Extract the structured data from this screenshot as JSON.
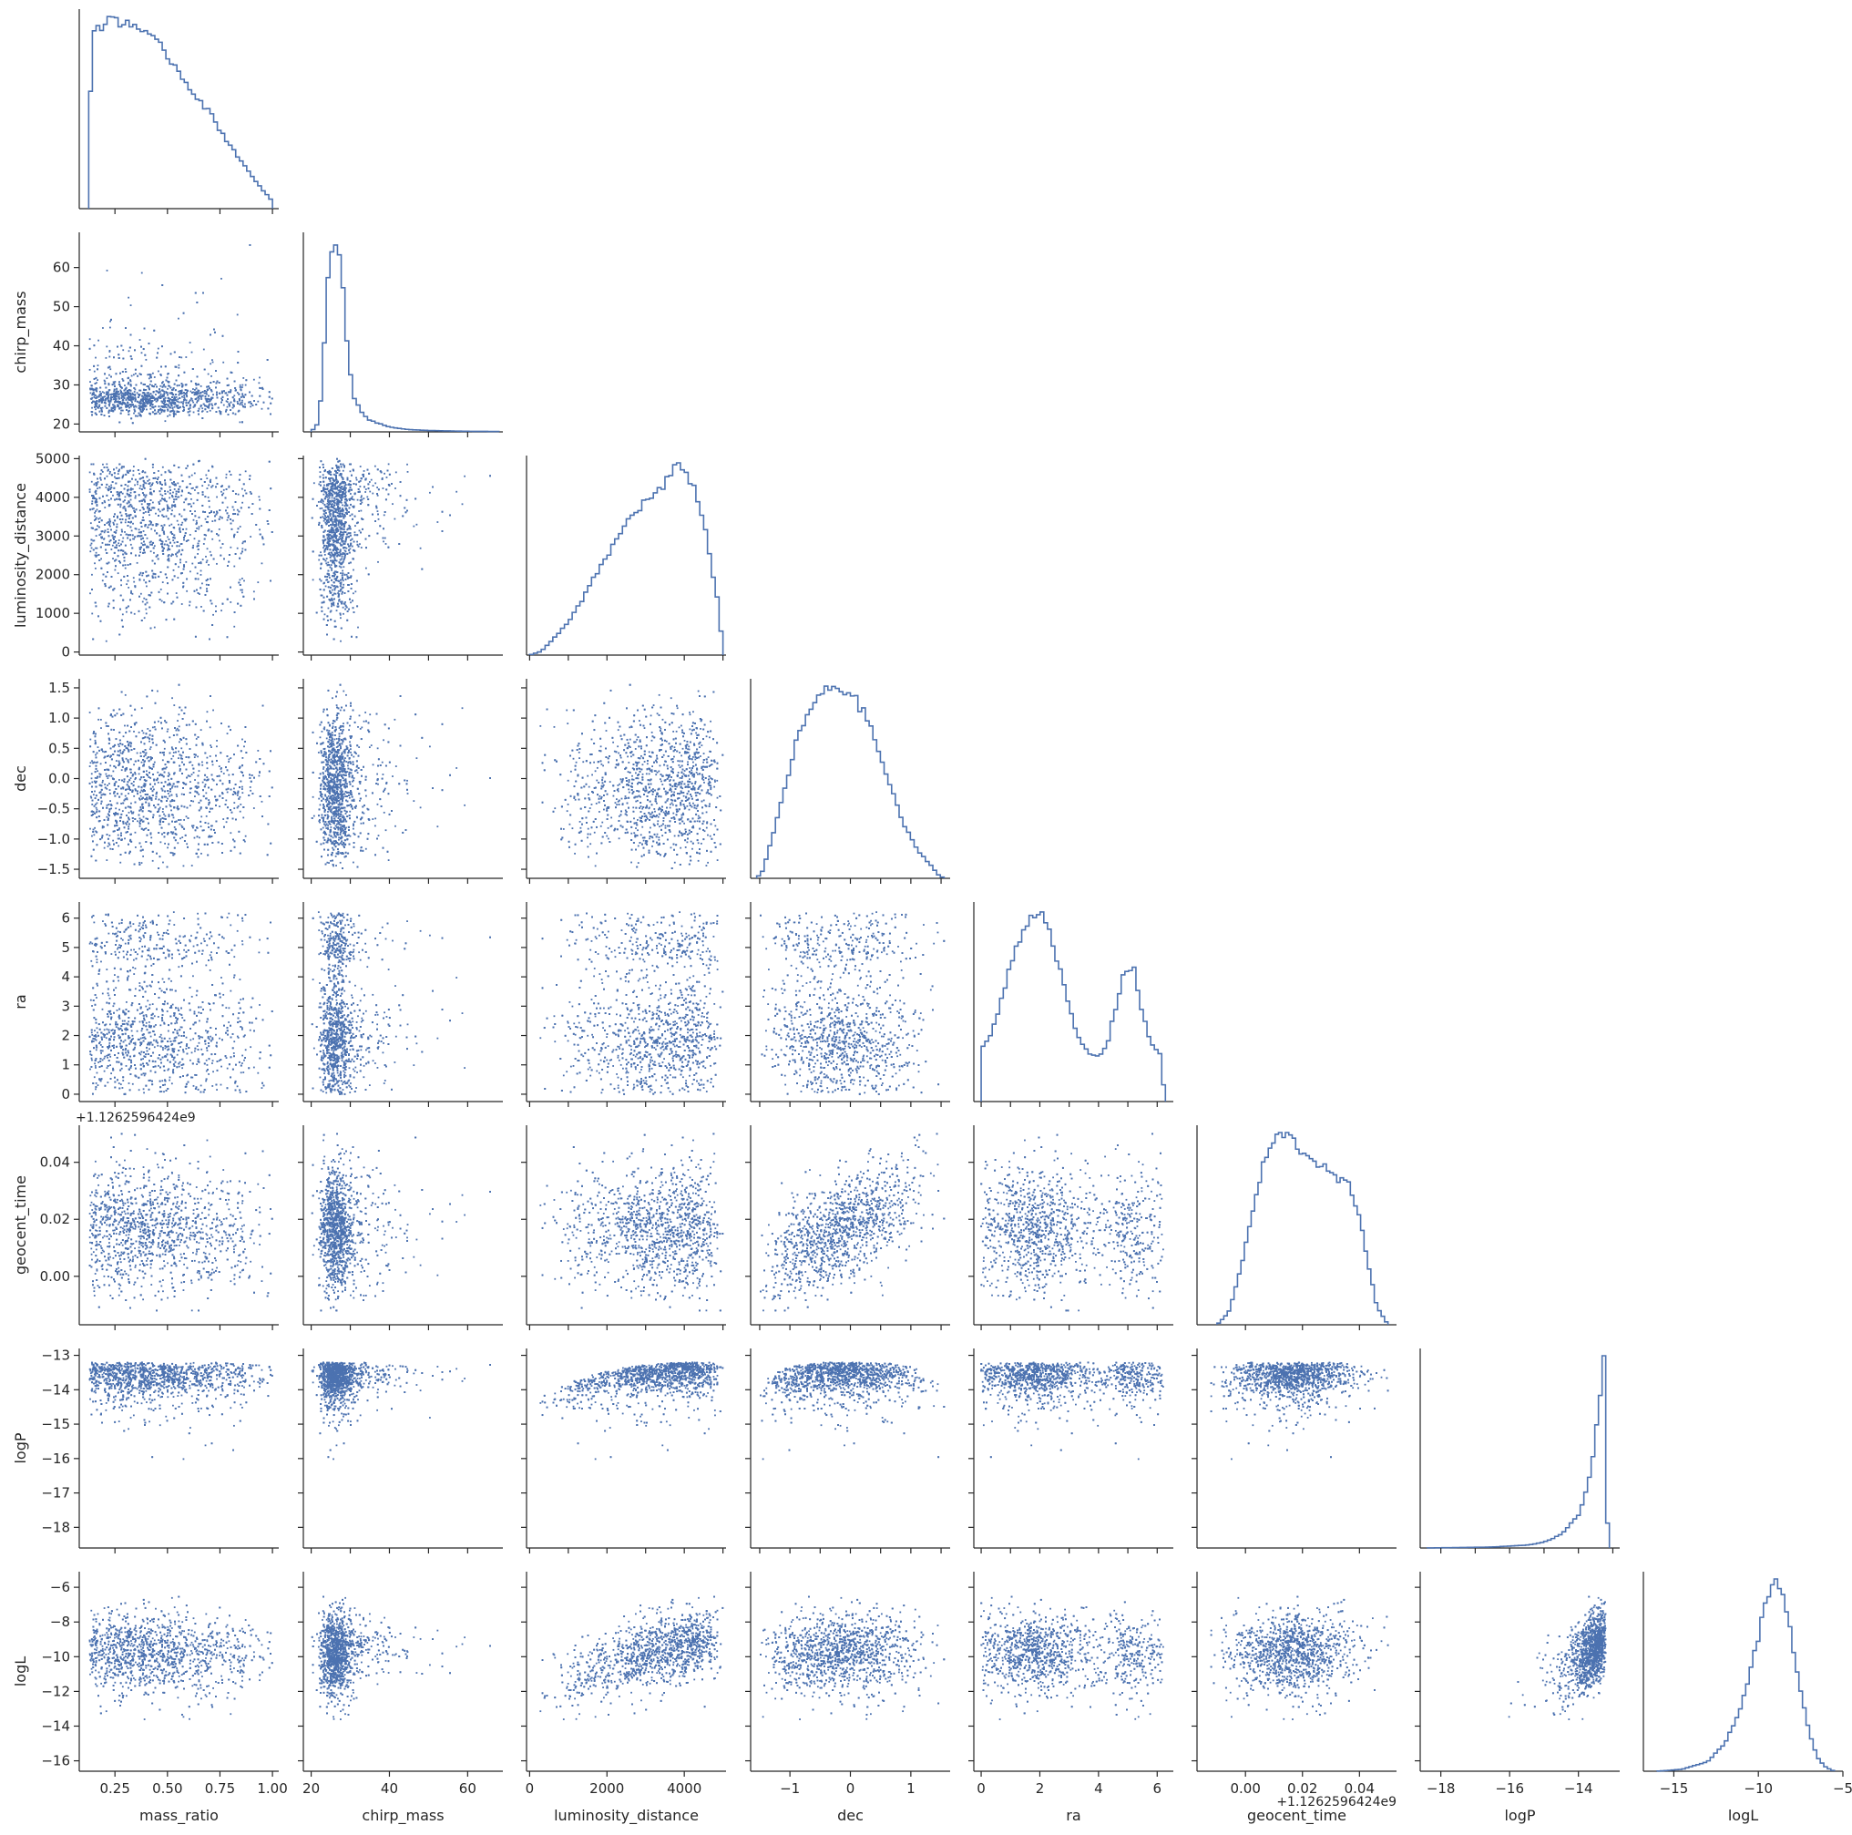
{
  "chart_data": {
    "type": "scatter",
    "title": "",
    "description_kind": "corner plot (pair plot, lower triangle) of 8 parameters with 1D histograms on the diagonal",
    "params": [
      "mass_ratio",
      "chirp_mass",
      "luminosity_distance",
      "dec",
      "ra",
      "geocent_time",
      "logP",
      "logL"
    ],
    "axes": [
      {
        "name": "mass_ratio",
        "range": [
          0.08,
          1.03
        ],
        "ticks": [
          0.25,
          0.5,
          0.75,
          1.0
        ],
        "tick_labels": [
          "0.25",
          "0.50",
          "0.75",
          "1.00"
        ]
      },
      {
        "name": "chirp_mass",
        "range": [
          18,
          69
        ],
        "ticks": [
          20,
          30,
          40,
          50,
          60
        ],
        "tick_labels": [
          "20",
          "30",
          "40",
          "50",
          "60"
        ]
      },
      {
        "name": "luminosity_distance",
        "range": [
          -80,
          5080
        ],
        "ticks": [
          0,
          1000,
          2000,
          3000,
          4000,
          5000
        ],
        "tick_labels": [
          "0",
          "1000",
          "2000",
          "3000",
          "4000",
          "5000"
        ]
      },
      {
        "name": "dec",
        "range": [
          -1.65,
          1.65
        ],
        "ticks": [
          -1.5,
          -1.0,
          -0.5,
          0.0,
          0.5,
          1.0,
          1.5
        ],
        "tick_labels": [
          "−1.5",
          "−1.0",
          "−0.5",
          "0.0",
          "0.5",
          "1.0",
          "1.5"
        ]
      },
      {
        "name": "ra",
        "range": [
          -0.25,
          6.55
        ],
        "ticks": [
          0,
          1,
          2,
          3,
          4,
          5,
          6
        ],
        "tick_labels": [
          "0",
          "1",
          "2",
          "3",
          "4",
          "5",
          "6"
        ]
      },
      {
        "name": "geocent_time",
        "range": [
          -0.017,
          0.053
        ],
        "ticks": [
          0.0,
          0.02,
          0.04
        ],
        "tick_labels": [
          "0.00",
          "0.02",
          "0.04"
        ],
        "offset_text": "+1.1262596424e9"
      },
      {
        "name": "logP",
        "range": [
          -18.6,
          -12.8
        ],
        "ticks": [
          -18,
          -17,
          -16,
          -15,
          -14,
          -13
        ],
        "tick_labels": [
          "−18",
          "−17",
          "−16",
          "−15",
          "−14",
          "−13"
        ]
      },
      {
        "name": "logL",
        "range": [
          -16.6,
          -5.1
        ],
        "ticks": [
          -16,
          -14,
          -12,
          -10,
          -8,
          -6
        ],
        "tick_labels": [
          "−16",
          "−14",
          "−12",
          "−10",
          "−8",
          "−6"
        ]
      }
    ],
    "x_tick_labels_bottom": [
      [
        "0.25",
        "0.50",
        "0.75",
        "1.00"
      ],
      [
        "20",
        "40",
        "60"
      ],
      [
        "0",
        "2000",
        "4000"
      ],
      [
        "−1",
        "0",
        "1"
      ],
      [
        "0",
        "2",
        "4",
        "6"
      ],
      [
        "0.00",
        "0.02",
        "0.04"
      ],
      [
        "−18",
        "−16",
        "−14"
      ],
      [
        "−15",
        "−10",
        "−5"
      ]
    ],
    "x_ticks_bottom": [
      [
        0.25,
        0.5,
        0.75,
        1.0
      ],
      [
        20,
        40,
        60
      ],
      [
        0,
        2000,
        4000
      ],
      [
        -1,
        0,
        1
      ],
      [
        0,
        2,
        4,
        6
      ],
      [
        0.0,
        0.02,
        0.04
      ],
      [
        -18,
        -16,
        -14
      ],
      [
        -15,
        -10,
        -5
      ]
    ],
    "x_range_bottom_last": [
      -16.8,
      -5.0
    ],
    "histograms": [
      {
        "param": "mass_ratio",
        "shape": "right-skewed, peak near 0.22, falling to zero at 1.0",
        "points": [
          [
            0.125,
            0.0
          ],
          [
            0.13,
            0.56
          ],
          [
            0.15,
            0.9
          ],
          [
            0.2,
            0.97
          ],
          [
            0.25,
            1.0
          ],
          [
            0.28,
            0.95
          ],
          [
            0.32,
            0.98
          ],
          [
            0.4,
            0.9
          ],
          [
            0.45,
            0.86
          ],
          [
            0.5,
            0.8
          ],
          [
            0.55,
            0.72
          ],
          [
            0.6,
            0.64
          ],
          [
            0.65,
            0.57
          ],
          [
            0.7,
            0.5
          ],
          [
            0.75,
            0.41
          ],
          [
            0.8,
            0.33
          ],
          [
            0.85,
            0.25
          ],
          [
            0.9,
            0.17
          ],
          [
            0.95,
            0.1
          ],
          [
            1.0,
            0.04
          ]
        ]
      },
      {
        "param": "chirp_mass",
        "shape": "sharp peak near 26, long right tail",
        "points": [
          [
            20,
            0.0
          ],
          [
            22,
            0.05
          ],
          [
            23,
            0.32
          ],
          [
            24,
            0.72
          ],
          [
            25,
            0.92
          ],
          [
            26,
            1.0
          ],
          [
            27,
            0.96
          ],
          [
            28,
            0.78
          ],
          [
            29,
            0.5
          ],
          [
            30,
            0.3
          ],
          [
            31,
            0.18
          ],
          [
            33,
            0.1
          ],
          [
            35,
            0.06
          ],
          [
            40,
            0.025
          ],
          [
            45,
            0.012
          ],
          [
            50,
            0.007
          ],
          [
            60,
            0.003
          ],
          [
            68,
            0.002
          ]
        ]
      },
      {
        "param": "luminosity_distance",
        "shape": "rising to peak near 3700, sharp cut at 5000",
        "points": [
          [
            0,
            0.0
          ],
          [
            300,
            0.02
          ],
          [
            600,
            0.08
          ],
          [
            1000,
            0.17
          ],
          [
            1400,
            0.3
          ],
          [
            1800,
            0.45
          ],
          [
            2200,
            0.58
          ],
          [
            2600,
            0.72
          ],
          [
            3000,
            0.8
          ],
          [
            3400,
            0.86
          ],
          [
            3700,
            0.95
          ],
          [
            3900,
            1.0
          ],
          [
            4100,
            0.94
          ],
          [
            4300,
            0.84
          ],
          [
            4500,
            0.7
          ],
          [
            4700,
            0.47
          ],
          [
            4900,
            0.25
          ],
          [
            5000,
            0.0
          ]
        ]
      },
      {
        "param": "dec",
        "shape": "broad peak near -0.25",
        "points": [
          [
            -1.55,
            0.0
          ],
          [
            -1.45,
            0.04
          ],
          [
            -1.3,
            0.2
          ],
          [
            -1.1,
            0.45
          ],
          [
            -0.9,
            0.7
          ],
          [
            -0.7,
            0.86
          ],
          [
            -0.5,
            0.95
          ],
          [
            -0.3,
            1.0
          ],
          [
            -0.1,
            0.97
          ],
          [
            0.0,
            0.98
          ],
          [
            0.1,
            0.92
          ],
          [
            0.3,
            0.82
          ],
          [
            0.5,
            0.63
          ],
          [
            0.7,
            0.44
          ],
          [
            0.9,
            0.27
          ],
          [
            1.1,
            0.15
          ],
          [
            1.3,
            0.08
          ],
          [
            1.45,
            0.02
          ],
          [
            1.55,
            0.0
          ]
        ]
      },
      {
        "param": "ra",
        "shape": "bimodal, peaks near 2.0 and 5.2",
        "points": [
          [
            0.0,
            0.0
          ],
          [
            0.05,
            0.28
          ],
          [
            0.3,
            0.34
          ],
          [
            0.6,
            0.47
          ],
          [
            0.9,
            0.65
          ],
          [
            1.2,
            0.8
          ],
          [
            1.5,
            0.91
          ],
          [
            1.8,
            0.98
          ],
          [
            2.0,
            1.0
          ],
          [
            2.2,
            0.95
          ],
          [
            2.5,
            0.8
          ],
          [
            2.8,
            0.61
          ],
          [
            3.1,
            0.43
          ],
          [
            3.4,
            0.3
          ],
          [
            3.7,
            0.25
          ],
          [
            4.0,
            0.23
          ],
          [
            4.3,
            0.3
          ],
          [
            4.6,
            0.5
          ],
          [
            4.9,
            0.69
          ],
          [
            5.2,
            0.7
          ],
          [
            5.5,
            0.45
          ],
          [
            5.8,
            0.3
          ],
          [
            6.1,
            0.25
          ],
          [
            6.28,
            0.0
          ]
        ]
      },
      {
        "param": "geocent_time",
        "shape": "broad plateau between 0.005 and 0.04",
        "points": [
          [
            -0.01,
            0.0
          ],
          [
            -0.006,
            0.06
          ],
          [
            -0.002,
            0.27
          ],
          [
            0.002,
            0.55
          ],
          [
            0.006,
            0.82
          ],
          [
            0.01,
            0.96
          ],
          [
            0.013,
            1.0
          ],
          [
            0.016,
            0.97
          ],
          [
            0.02,
            0.9
          ],
          [
            0.024,
            0.86
          ],
          [
            0.028,
            0.81
          ],
          [
            0.032,
            0.76
          ],
          [
            0.036,
            0.73
          ],
          [
            0.04,
            0.58
          ],
          [
            0.043,
            0.32
          ],
          [
            0.046,
            0.1
          ],
          [
            0.05,
            0.0
          ]
        ]
      },
      {
        "param": "logP",
        "shape": "sharp peak just below -13.2, long left tail",
        "points": [
          [
            -18.4,
            0.0
          ],
          [
            -16.5,
            0.005
          ],
          [
            -15.5,
            0.015
          ],
          [
            -15.0,
            0.03
          ],
          [
            -14.5,
            0.07
          ],
          [
            -14.0,
            0.17
          ],
          [
            -13.7,
            0.34
          ],
          [
            -13.5,
            0.58
          ],
          [
            -13.35,
            0.83
          ],
          [
            -13.25,
            1.0
          ],
          [
            -13.15,
            0.1
          ],
          [
            -13.1,
            0.0
          ]
        ]
      },
      {
        "param": "logL",
        "shape": "peak near -9, skewed left",
        "points": [
          [
            -16.0,
            0.0
          ],
          [
            -14.5,
            0.01
          ],
          [
            -13.0,
            0.05
          ],
          [
            -12.0,
            0.14
          ],
          [
            -11.0,
            0.34
          ],
          [
            -10.3,
            0.58
          ],
          [
            -9.7,
            0.82
          ],
          [
            -9.2,
            0.96
          ],
          [
            -8.9,
            1.0
          ],
          [
            -8.5,
            0.9
          ],
          [
            -8.0,
            0.68
          ],
          [
            -7.5,
            0.42
          ],
          [
            -7.0,
            0.2
          ],
          [
            -6.5,
            0.07
          ],
          [
            -6.0,
            0.02
          ],
          [
            -5.5,
            0.0
          ]
        ]
      }
    ],
    "marker_color": "#4c72b0",
    "line_color": "#4c72b0",
    "grid": false,
    "legend": "none"
  }
}
